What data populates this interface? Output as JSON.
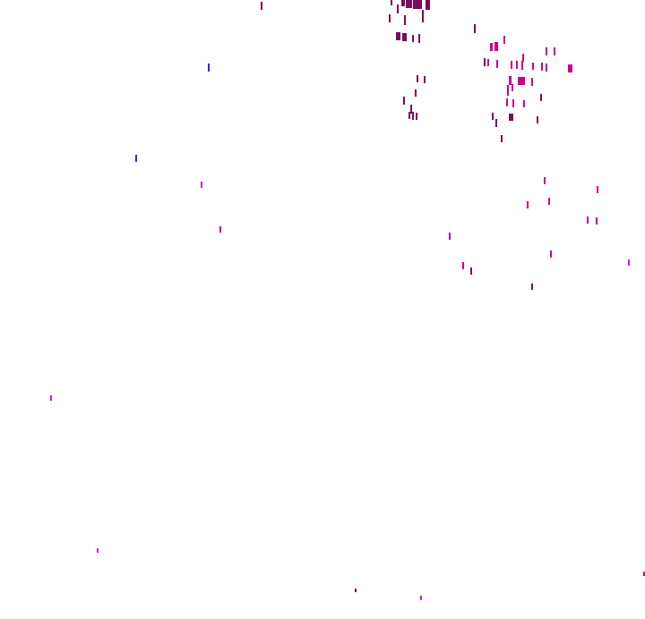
{
  "colors": {
    "background": "#ffffff",
    "dark_purple": "#7a0a5c",
    "magenta": "#cc0088",
    "blue": "#3a1aff",
    "violet": "#c020e0"
  }
}
